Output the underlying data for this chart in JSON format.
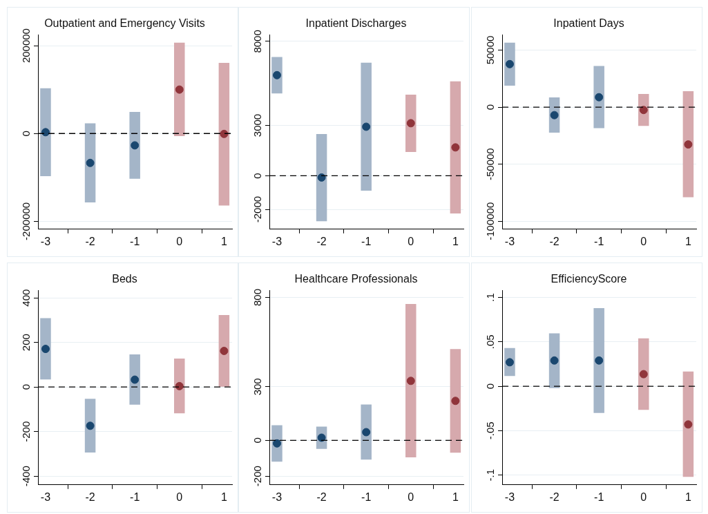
{
  "chart_data": [
    {
      "type": "bar",
      "title": "Outpatient and Emergency Visits",
      "xlim": [
        -3.17,
        1.18
      ],
      "xticks": [
        -3,
        -2,
        -1,
        0,
        1
      ],
      "ylim": [
        -218000,
        225000
      ],
      "yticks": [
        -200000,
        0,
        200000
      ],
      "grid": "y",
      "marker": "circle",
      "ref_lines": [
        {
          "axis": "y",
          "value": 0,
          "line_style": "dashed",
          "color": "#000000"
        }
      ],
      "series": [
        {
          "color": "#a4b5c8",
          "x": [
            -3,
            -2,
            -1
          ],
          "base": [
            -97000,
            -157000,
            -103000
          ],
          "values": [
            200000,
            180000,
            152000
          ]
        },
        {
          "color": "#d6a9ad",
          "x": [
            0,
            1
          ],
          "base": [
            -6000,
            -164000
          ],
          "values": [
            213000,
            325000
          ]
        },
        {
          "type": "scatter",
          "color": "#1a476f",
          "x": [
            -3,
            -2,
            -1
          ],
          "values": [
            3000,
            -67000,
            -27000
          ]
        },
        {
          "type": "scatter",
          "color": "#90353b",
          "x": [
            0,
            1
          ],
          "values": [
            100000,
            -1000
          ]
        }
      ]
    },
    {
      "type": "bar",
      "title": "Inpatient Discharges",
      "xlim": [
        -3.17,
        1.18
      ],
      "xticks": [
        -3,
        -2,
        -1,
        0,
        1
      ],
      "ylim": [
        -3180,
        8400
      ],
      "yticks": [
        -2000,
        0,
        3000,
        8000
      ],
      "grid": "y",
      "marker": "circle",
      "ref_lines": [
        {
          "axis": "y",
          "value": 0,
          "line_style": "dashed",
          "color": "#000000"
        }
      ],
      "series": [
        {
          "color": "#a4b5c8",
          "x": [
            -3,
            -2,
            -1
          ],
          "base": [
            4900,
            -2700,
            -890
          ],
          "values": [
            2170,
            5190,
            7620
          ]
        },
        {
          "color": "#d6a9ad",
          "x": [
            0,
            1
          ],
          "base": [
            1420,
            -2240
          ],
          "values": [
            3410,
            7860
          ]
        },
        {
          "type": "scatter",
          "color": "#1a476f",
          "x": [
            -3,
            -2,
            -1
          ],
          "values": [
            5990,
            -100,
            2920
          ]
        },
        {
          "type": "scatter",
          "color": "#90353b",
          "x": [
            0,
            1
          ],
          "values": [
            3130,
            1690
          ]
        }
      ]
    },
    {
      "type": "bar",
      "title": "Inpatient Days",
      "xlim": [
        -3.17,
        1.18
      ],
      "xticks": [
        -3,
        -2,
        -1,
        0,
        1
      ],
      "ylim": [
        -107000,
        63500
      ],
      "yticks": [
        -100000,
        -50000,
        0,
        50000
      ],
      "grid": "y",
      "marker": "circle",
      "ref_lines": [
        {
          "axis": "y",
          "value": 0,
          "line_style": "dashed",
          "color": "#000000"
        }
      ],
      "series": [
        {
          "color": "#a4b5c8",
          "x": [
            -3,
            -2,
            -1
          ],
          "base": [
            18800,
            -22400,
            -18400
          ],
          "values": [
            37700,
            30900,
            54400
          ]
        },
        {
          "color": "#d6a9ad",
          "x": [
            0,
            1
          ],
          "base": [
            -16400,
            -78900
          ],
          "values": [
            28000,
            92800
          ]
        },
        {
          "type": "scatter",
          "color": "#1a476f",
          "x": [
            -3,
            -2,
            -1
          ],
          "values": [
            37700,
            -7000,
            8700
          ]
        },
        {
          "type": "scatter",
          "color": "#90353b",
          "x": [
            0,
            1
          ],
          "values": [
            -2500,
            -32700
          ]
        }
      ]
    },
    {
      "type": "bar",
      "title": "Beds",
      "xlim": [
        -3.17,
        1.18
      ],
      "xticks": [
        -3,
        -2,
        -1,
        0,
        1
      ],
      "ylim": [
        -439,
        434
      ],
      "yticks": [
        -400,
        -200,
        0,
        200,
        400
      ],
      "grid": "y",
      "marker": "circle",
      "ref_lines": [
        {
          "axis": "y",
          "value": 0,
          "line_style": "dashed",
          "color": "#000000"
        }
      ],
      "series": [
        {
          "color": "#a4b5c8",
          "x": [
            -3,
            -2,
            -1
          ],
          "base": [
            34,
            -294,
            -79
          ],
          "values": [
            275,
            241,
            225
          ]
        },
        {
          "color": "#d6a9ad",
          "x": [
            0,
            1
          ],
          "base": [
            -118,
            0
          ],
          "values": [
            246,
            323
          ]
        },
        {
          "type": "scatter",
          "color": "#1a476f",
          "x": [
            -3,
            -2,
            -1
          ],
          "values": [
            171,
            -174,
            33
          ]
        },
        {
          "type": "scatter",
          "color": "#90353b",
          "x": [
            0,
            1
          ],
          "values": [
            4,
            162
          ]
        }
      ]
    },
    {
      "type": "bar",
      "title": "Healthcare Professionals",
      "xlim": [
        -3.17,
        1.18
      ],
      "xticks": [
        -3,
        -2,
        -1,
        0,
        1
      ],
      "ylim": [
        -249,
        840
      ],
      "yticks": [
        -200,
        0,
        300,
        800
      ],
      "grid": "y",
      "marker": "circle",
      "ref_lines": [
        {
          "axis": "y",
          "value": 0,
          "line_style": "dashed",
          "color": "#000000"
        }
      ],
      "series": [
        {
          "color": "#a4b5c8",
          "x": [
            -3,
            -2,
            -1
          ],
          "base": [
            -119,
            -48,
            -108
          ],
          "values": [
            204,
            125,
            309
          ]
        },
        {
          "color": "#d6a9ad",
          "x": [
            0,
            1
          ],
          "base": [
            -95,
            -69
          ],
          "values": [
            858,
            580
          ]
        },
        {
          "type": "scatter",
          "color": "#1a476f",
          "x": [
            -3,
            -2,
            -1
          ],
          "values": [
            -17,
            15,
            46
          ]
        },
        {
          "type": "scatter",
          "color": "#90353b",
          "x": [
            0,
            1
          ],
          "values": [
            333,
            221
          ]
        }
      ]
    },
    {
      "type": "bar",
      "title": "EfficiencyScore",
      "xlim": [
        -3.17,
        1.18
      ],
      "xticks": [
        -3,
        -2,
        -1,
        0,
        1
      ],
      "ylim": [
        -0.111,
        0.108
      ],
      "yticks": [
        {
          "value": -0.1,
          "label": "-.1"
        },
        {
          "value": -0.05,
          "label": "-.05"
        },
        0,
        {
          "value": 0.05,
          "label": ".05"
        },
        {
          "value": 0.1,
          "label": ".1"
        }
      ],
      "grid": "y",
      "marker": "circle",
      "ref_lines": [
        {
          "axis": "y",
          "value": 0,
          "line_style": "dashed",
          "color": "#000000"
        }
      ],
      "series": [
        {
          "color": "#a4b5c8",
          "x": [
            -3,
            -2,
            -1
          ],
          "base": [
            0.0115,
            -0.002,
            -0.03
          ],
          "values": [
            0.0315,
            0.0616,
            0.118
          ]
        },
        {
          "color": "#d6a9ad",
          "x": [
            0,
            1
          ],
          "base": [
            -0.0265,
            -0.102
          ],
          "values": [
            0.0805,
            0.1186
          ]
        },
        {
          "type": "scatter",
          "color": "#1a476f",
          "x": [
            -3,
            -2,
            -1
          ],
          "values": [
            0.027,
            0.029,
            0.029
          ]
        },
        {
          "type": "scatter",
          "color": "#90353b",
          "x": [
            0,
            1
          ],
          "values": [
            0.0136,
            -0.043
          ]
        }
      ]
    }
  ]
}
